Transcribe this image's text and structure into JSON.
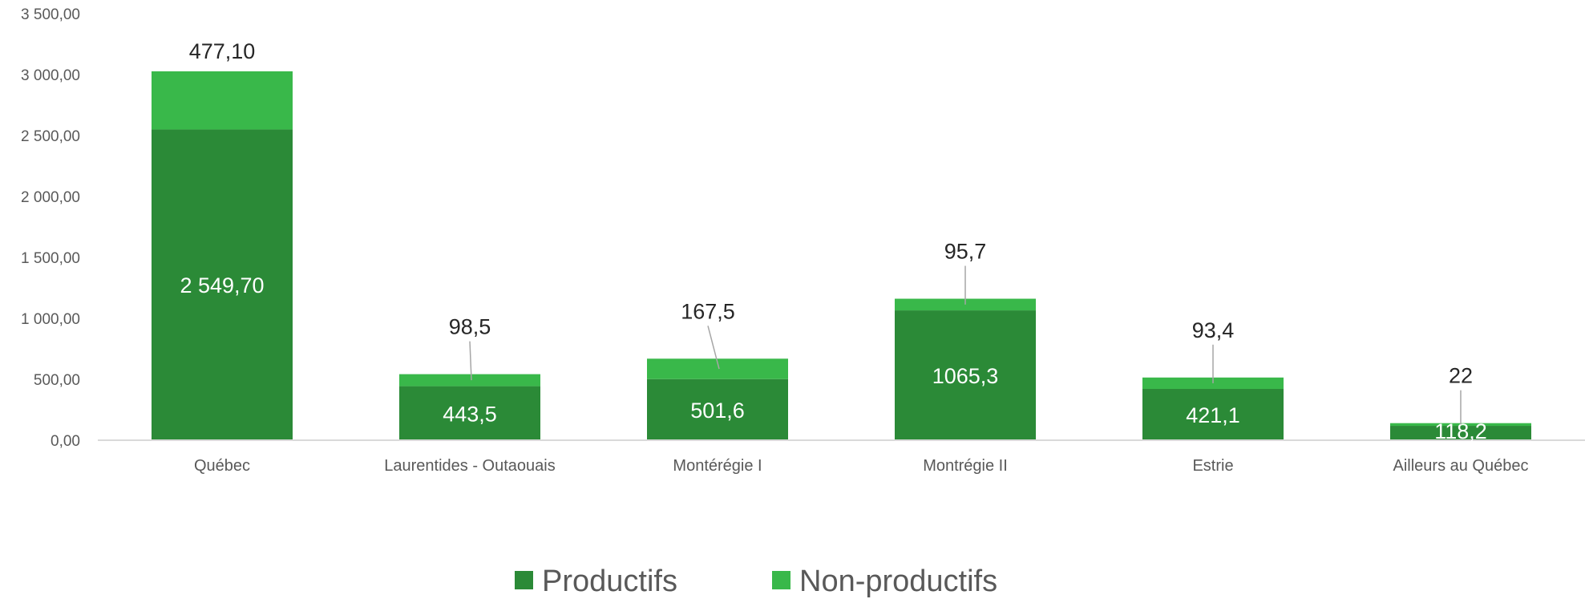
{
  "chart_data": {
    "type": "bar",
    "stacked": true,
    "categories": [
      "Québec",
      "Laurentides - Outaouais",
      "Montérégie I",
      "Montrégie II",
      "Estrie",
      "Ailleurs au Québec"
    ],
    "series": [
      {
        "name": "Productifs",
        "color": "#2b8a37",
        "values": [
          2549.7,
          443.5,
          501.6,
          1065.3,
          421.1,
          118.2
        ],
        "labels": [
          "2 549,70",
          "443,5",
          "501,6",
          "1065,3",
          "421,1",
          "118,2"
        ]
      },
      {
        "name": "Non-productifs",
        "color": "#39b84a",
        "values": [
          477.1,
          98.5,
          167.5,
          95.7,
          93.4,
          22
        ],
        "labels": [
          "477,10",
          "98,5",
          "167,5",
          "95,7",
          "93,4",
          "22"
        ]
      }
    ],
    "ylim": [
      0,
      3500
    ],
    "y_ticks": [
      0,
      500,
      1000,
      1500,
      2000,
      2500,
      3000,
      3500
    ],
    "y_tick_labels": [
      "0,00",
      "500,00",
      "1 000,00",
      "1 500,00",
      "2 000,00",
      "2 500,00",
      "3 000,00",
      "3 500,00"
    ],
    "grid": false,
    "legend_position": "bottom",
    "title": "",
    "xlabel": "",
    "ylabel": ""
  }
}
